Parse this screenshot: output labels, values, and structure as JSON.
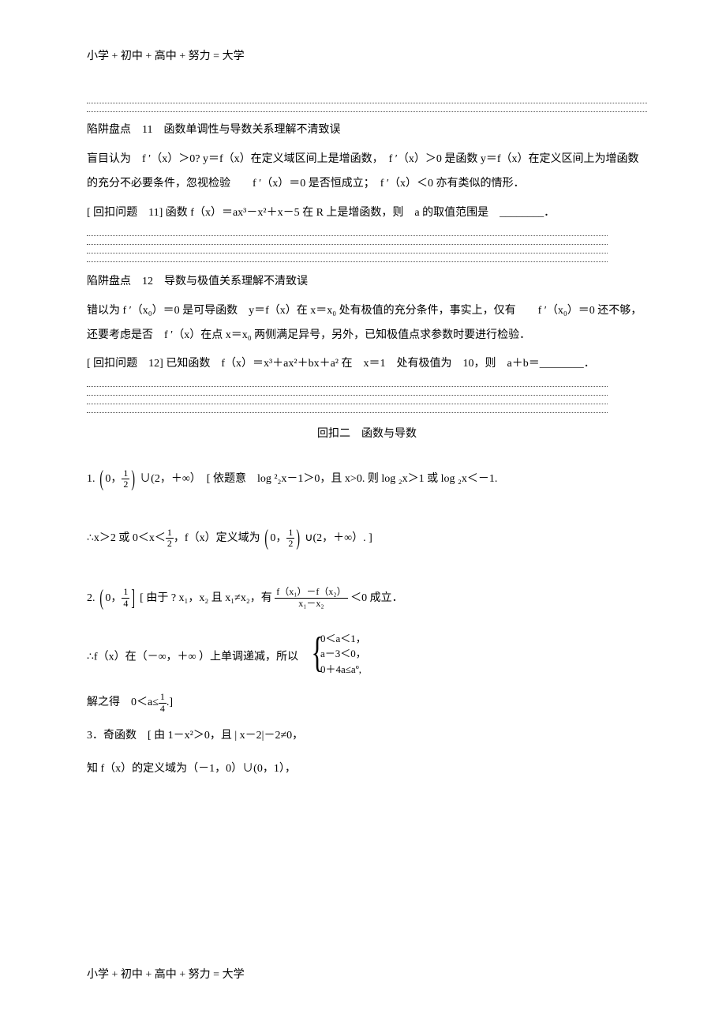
{
  "header": "小学 + 初中 + 高中 + 努力 = 大学",
  "footer": "小学 + 初中 + 高中 + 努力 = 大学",
  "trap11": {
    "title": "陷阱盘点　11　函数单调性与导数关系理解不清致误",
    "body": "盲目认为　f ′（x）＞0? y＝f（x）在定义域区间上是增函数，　f ′（x）＞0 是函数 y＝f（x）在定义区间上为增函数的充分不必要条件，忽视检验　　f ′（x）＝0 是否恒成立；　f ′（x）＜0 亦有类似的情形．",
    "question": "[ 回扣问题　11] 函数 f（x）＝ax³－x²＋x－5 在 R 上是增函数，则　a 的取值范围是　________．"
  },
  "trap12": {
    "title": "陷阱盘点　12　导数与极值关系理解不清致误",
    "body": "错以为 f ′（x₀）＝0 是可导函数　y＝f（x）在 x＝x₀ 处有极值的充分条件，事实上，仅有　　f ′（x₀）＝0 还不够，还要考虑是否　f ′（x）在点 x＝x₀ 两侧满足异号，另外，已知极值点求参数时要进行检验．",
    "question": "[ 回扣问题　12] 已知函数　f（x）＝x³＋ax²＋bx＋a² 在　x＝1　处有极值为　10，则　a＋b＝________．"
  },
  "answers": {
    "heading": "回扣二　函数与导数",
    "a1": {
      "prefix": "1.",
      "interval_open": "0，",
      "frac_num": "1",
      "frac_den": "2",
      "mid": "∪(2，＋∞）　[ 依题意　log ²₂x－1＞0，且 x>0. 则 log ₂x＞1 或 log ₂x＜－1.",
      "line2_a": "∴x＞2 或 0＜x＜",
      "line2_b": "，f（x）定义域为",
      "line2_c": "∪(2，＋∞）. ]"
    },
    "a2": {
      "prefix": "2.",
      "interval": "0，",
      "frac_num": "1",
      "frac_den": "4",
      "mid_a": "[ 由于 ? x₁，x₂ 且 x₁≠x₂，有",
      "frac2_num": "f（x₁）－f（x₂）",
      "frac2_den": "x₁－x₂",
      "mid_b": "＜0 成立．",
      "line2_a": "∴f（x）在（－∞，＋∞ ）上单调递减，所以",
      "case1": "0＜a＜1，",
      "case2": "a－3＜0，",
      "case3": "0＋4a≤aº,",
      "line3": "解之得　0＜a≤",
      "line3_end": ".]"
    },
    "a3": {
      "prefix": "3．奇函数　[ 由 1－x²＞0，且 | x－2|－2≠0，",
      "line2": "知 f（x）的定义域为（－1，0）∪(0，1），"
    }
  }
}
